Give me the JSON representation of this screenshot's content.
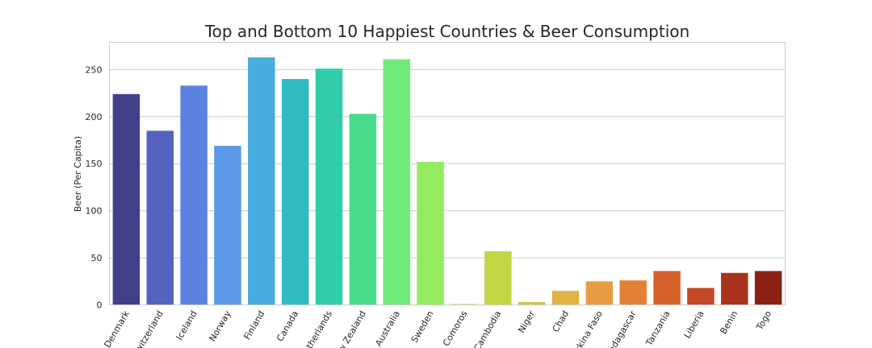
{
  "chart_data": {
    "type": "bar",
    "title": "Top and Bottom 10 Happiest Countries & Beer Consumption",
    "xlabel": "",
    "ylabel": "Beer (Per Capita)",
    "ylim": [
      0,
      279
    ],
    "yticks": [
      0,
      50,
      100,
      150,
      200,
      250
    ],
    "grid": true,
    "categories": [
      "Denmark",
      "Switzerland",
      "Iceland",
      "Norway",
      "Finland",
      "Canada",
      "Netherlands",
      "New Zealand",
      "Australia",
      "Sweden",
      "Comoros",
      "Cambodia",
      "Niger",
      "Chad",
      "Burkina Faso",
      "Madagascar",
      "Tanzania",
      "Liberia",
      "Benin",
      "Togo"
    ],
    "values": [
      224,
      185,
      233,
      169,
      263,
      240,
      251,
      203,
      261,
      152,
      1,
      57,
      3,
      15,
      25,
      26,
      36,
      18,
      34,
      36
    ],
    "colors": [
      "#423f8a",
      "#5463c0",
      "#5c82e0",
      "#5b99e8",
      "#48acde",
      "#32bbc3",
      "#31cdab",
      "#49db8c",
      "#72ea7b",
      "#94eb5f",
      "#b7e152",
      "#c3d445",
      "#d2c344",
      "#e2b446",
      "#e79c44",
      "#e37f36",
      "#d5612a",
      "#c34823",
      "#a9331d",
      "#8c2215"
    ]
  }
}
